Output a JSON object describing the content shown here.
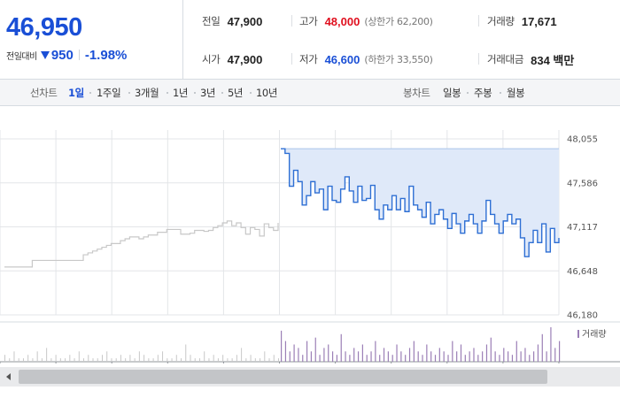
{
  "price": {
    "current": "46,950",
    "change_label": "전일대비",
    "change_value": "950",
    "change_rate": "-1.98%",
    "direction": "down"
  },
  "stats": {
    "prev_close": {
      "label": "전일",
      "value": "47,900"
    },
    "open": {
      "label": "시가",
      "value": "47,900"
    },
    "high": {
      "label": "고가",
      "value": "48,000",
      "sub": "(상한가 62,200)"
    },
    "low": {
      "label": "저가",
      "value": "46,600",
      "sub": "(하한가 33,550)"
    },
    "volume": {
      "label": "거래량",
      "value": "17,671"
    },
    "trade_amount": {
      "label": "거래대금",
      "value": "834 백만"
    }
  },
  "period_bar": {
    "line_chart_label": "선차트",
    "line_options": [
      "1일",
      "1주일",
      "3개월",
      "1년",
      "3년",
      "5년",
      "10년"
    ],
    "line_active": "1일",
    "candle_chart_label": "봉차트",
    "candle_options": [
      "일봉",
      "주봉",
      "월봉"
    ]
  },
  "colors": {
    "price_up": "#e0101f",
    "price_down": "#1a4fd6",
    "today_line": "#2e6fd4",
    "today_fill": "#dfe9f9",
    "prev_line": "#c8c8c8",
    "volume_bar": "#9b7fb6",
    "volume_bar_prev": "#c8c8c8"
  },
  "chart_data": {
    "type": "line",
    "title": "",
    "xlabel": "",
    "ylabel": "",
    "y_ticks": [
      "48,055",
      "47,586",
      "47,117",
      "46,648",
      "46,180"
    ],
    "ylim": [
      46180,
      48055
    ],
    "x_grid_divisions": 10,
    "grid": true,
    "volume_legend": "거래량",
    "series": [
      {
        "period": "previous",
        "values": [
          46690,
          46690,
          46690,
          46690,
          46690,
          46690,
          46760,
          46760,
          46760,
          46760,
          46760,
          46760,
          46760,
          46760,
          46760,
          46760,
          46760,
          46820,
          46840,
          46860,
          46880,
          46900,
          46920,
          46940,
          46940,
          46970,
          46990,
          47010,
          47010,
          46990,
          47010,
          47030,
          47030,
          47060,
          47060,
          47090,
          47090,
          47090,
          47040,
          47040,
          47050,
          47080,
          47080,
          47070,
          47080,
          47110,
          47130,
          47160,
          47180,
          47130,
          47160,
          47110,
          47040,
          47110,
          47090,
          47020,
          47150,
          47110,
          47080,
          47160
        ]
      },
      {
        "period": "today",
        "values": [
          47950,
          47900,
          47550,
          47720,
          47600,
          47350,
          47450,
          47600,
          47480,
          47520,
          47300,
          47550,
          47400,
          47380,
          47520,
          47650,
          47500,
          47380,
          47550,
          47400,
          47420,
          47560,
          47300,
          47200,
          47350,
          47300,
          47450,
          47300,
          47420,
          47280,
          47550,
          47350,
          47300,
          47220,
          47380,
          47150,
          47250,
          47300,
          47200,
          47100,
          47260,
          47150,
          47050,
          47180,
          47250,
          47150,
          47050,
          47180,
          47400,
          47250,
          47150,
          47050,
          47180,
          47250,
          47150,
          47200,
          47000,
          46800,
          46950,
          47080,
          46950,
          47150,
          46850,
          47100,
          46950,
          47000
        ]
      }
    ],
    "volume": {
      "previous": [
        2,
        1,
        3,
        1,
        1,
        2,
        1,
        3,
        1,
        4,
        1,
        2,
        1,
        1,
        2,
        1,
        3,
        1,
        2,
        1,
        1,
        2,
        3,
        1,
        1,
        2,
        1,
        2,
        1,
        3,
        2,
        1,
        1,
        2,
        3,
        1,
        1,
        2,
        1,
        5,
        2,
        1,
        1,
        3,
        1,
        2,
        1,
        2,
        1,
        1,
        2,
        4,
        1,
        2,
        1,
        1,
        3,
        1,
        2,
        1
      ],
      "today": [
        9,
        6,
        3,
        5,
        4,
        2,
        6,
        3,
        7,
        2,
        4,
        5,
        3,
        2,
        8,
        3,
        2,
        4,
        3,
        5,
        2,
        3,
        6,
        2,
        4,
        3,
        2,
        5,
        3,
        2,
        4,
        6,
        3,
        2,
        5,
        3,
        2,
        4,
        3,
        2,
        6,
        3,
        5,
        2,
        3,
        4,
        2,
        3,
        5,
        7,
        3,
        2,
        4,
        3,
        2,
        6,
        3,
        4,
        2,
        3,
        5,
        8,
        3,
        10,
        4,
        6
      ]
    }
  }
}
